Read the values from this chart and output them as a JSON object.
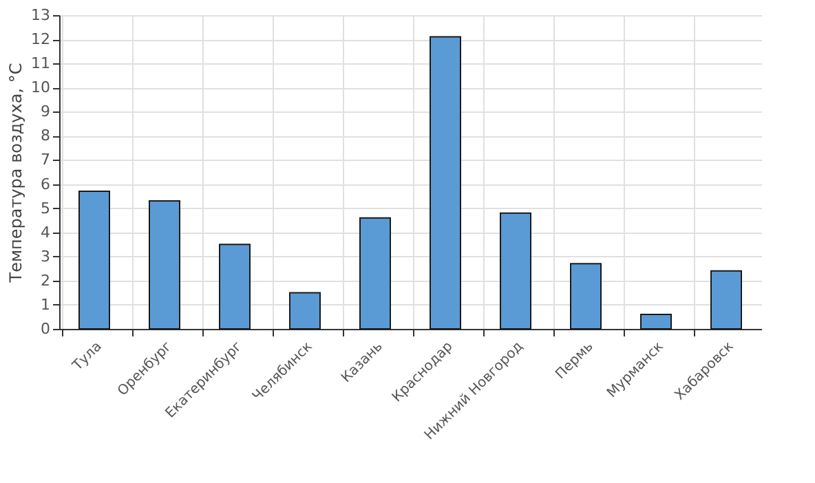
{
  "chart_data": {
    "type": "bar",
    "ylabel": "Температура воздуха, °С",
    "categories": [
      "Тула",
      "Оренбург",
      "Екатеринбург",
      "Челябинск",
      "Казань",
      "Краснодар",
      "Нижний Новгород",
      "Пермь",
      "Мурманск",
      "Хабаровск"
    ],
    "values": [
      5.7,
      5.3,
      3.5,
      1.5,
      4.6,
      12.1,
      4.8,
      2.7,
      0.6,
      2.4
    ],
    "color": "#5b9bd5",
    "ylim": [
      0,
      13
    ],
    "yticks": [
      0,
      1,
      2,
      3,
      4,
      5,
      6,
      7,
      8,
      9,
      10,
      11,
      12,
      13
    ],
    "grid": true
  }
}
